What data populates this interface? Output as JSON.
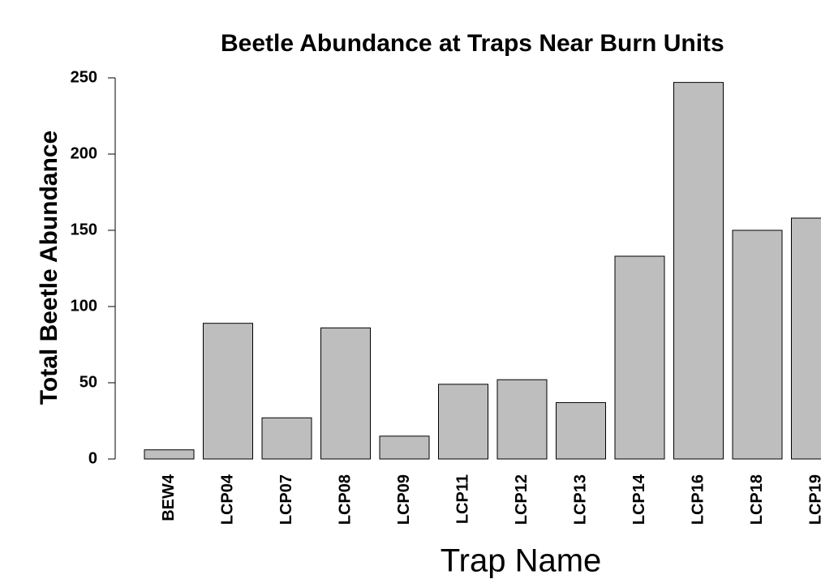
{
  "chart_data": {
    "type": "bar",
    "title": "Beetle Abundance at Traps Near Burn Units",
    "xlabel": "Trap Name",
    "ylabel": "Total Beetle Abundance",
    "categories": [
      "BEW4",
      "LCP04",
      "LCP07",
      "LCP08",
      "LCP09",
      "LCP11",
      "LCP12",
      "LCP13",
      "LCP14",
      "LCP16",
      "LCP18",
      "LCP19"
    ],
    "values": [
      6,
      89,
      27,
      86,
      15,
      49,
      52,
      37,
      133,
      247,
      150,
      158
    ],
    "color": "#bebebe",
    "ylim": [
      0,
      250
    ],
    "yticks": [
      0,
      50,
      100,
      150,
      200,
      250
    ],
    "grid": false
  }
}
